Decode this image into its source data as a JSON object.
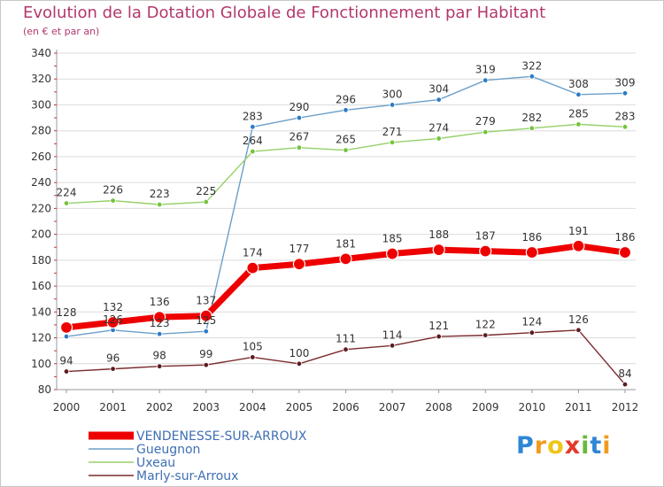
{
  "header": {
    "title": "Evolution de la Dotation Globale de Fonctionnement par Habitant",
    "subtitle": "(en € et par an)"
  },
  "chart_data": {
    "type": "line",
    "title": "Evolution de la Dotation Globale de Fonctionnement par Habitant",
    "subtitle": "(en € et par an)",
    "xlabel": "",
    "ylabel": "",
    "ylim": [
      80,
      340
    ],
    "y_ticks": [
      80,
      100,
      120,
      140,
      160,
      180,
      200,
      220,
      240,
      260,
      280,
      300,
      320,
      340
    ],
    "categories": [
      "2000",
      "2001",
      "2002",
      "2003",
      "2004",
      "2005",
      "2006",
      "2007",
      "2008",
      "2009",
      "2010",
      "2011",
      "2012"
    ],
    "grid": "horizontal",
    "legend_position": "bottom-left",
    "series": [
      {
        "name": "Gueugnon",
        "color": "#6b9fc9",
        "marker": "#2e7bc4",
        "values": [
          121,
          126,
          123,
          125,
          283,
          290,
          296,
          300,
          304,
          319,
          322,
          308,
          309
        ],
        "labels": [
          "",
          "126",
          "123",
          "125",
          "283",
          "290",
          "296",
          "300",
          "304",
          "319",
          "322",
          "308",
          "309"
        ]
      },
      {
        "name": "Uxeau",
        "color": "#95d16a",
        "marker": "#74c43b",
        "values": [
          224,
          226,
          223,
          225,
          264,
          267,
          265,
          271,
          274,
          279,
          282,
          285,
          283
        ],
        "labels": [
          "224",
          "226",
          "223",
          "225",
          "264",
          "267",
          "265",
          "271",
          "274",
          "279",
          "282",
          "285",
          "283"
        ]
      },
      {
        "name": "Marly-sur-Arroux",
        "color": "#7a2b2e",
        "marker": "#5e1b1e",
        "values": [
          94,
          96,
          98,
          99,
          105,
          100,
          111,
          114,
          121,
          122,
          124,
          126,
          84
        ],
        "labels": [
          "94",
          "96",
          "98",
          "99",
          "105",
          "100",
          "111",
          "114",
          "121",
          "122",
          "124",
          "126",
          "84"
        ]
      },
      {
        "name": "VENDENESSE-SUR-ARROUX",
        "color": "#ee0000",
        "marker": "#ee0000",
        "bold": true,
        "values": [
          128,
          132,
          136,
          137,
          174,
          177,
          181,
          185,
          188,
          187,
          186,
          191,
          186
        ],
        "labels": [
          "128",
          "132",
          "136",
          "137",
          "174",
          "177",
          "181",
          "185",
          "188",
          "187",
          "186",
          "191",
          "186"
        ]
      }
    ],
    "legend": [
      {
        "name": "VENDENESSE-SUR-ARROUX",
        "color": "#ee0000",
        "text_color": "#3f6fb3",
        "bold": true
      },
      {
        "name": "Gueugnon",
        "color": "#6b9fc9",
        "text_color": "#3f6fb3"
      },
      {
        "name": "Uxeau",
        "color": "#95d16a",
        "text_color": "#3f6fb3"
      },
      {
        "name": "Marly-sur-Arroux",
        "color": "#7a2b2e",
        "text_color": "#3f6fb3"
      }
    ]
  },
  "logo": {
    "letters": [
      "P",
      "r",
      "o",
      "x",
      "i",
      "t",
      "i"
    ],
    "colors": [
      "#2f86d6",
      "#f29a1f",
      "#f0c419",
      "#e23a2a",
      "#6aba3a",
      "#2f86d6",
      "#f29a1f"
    ]
  }
}
